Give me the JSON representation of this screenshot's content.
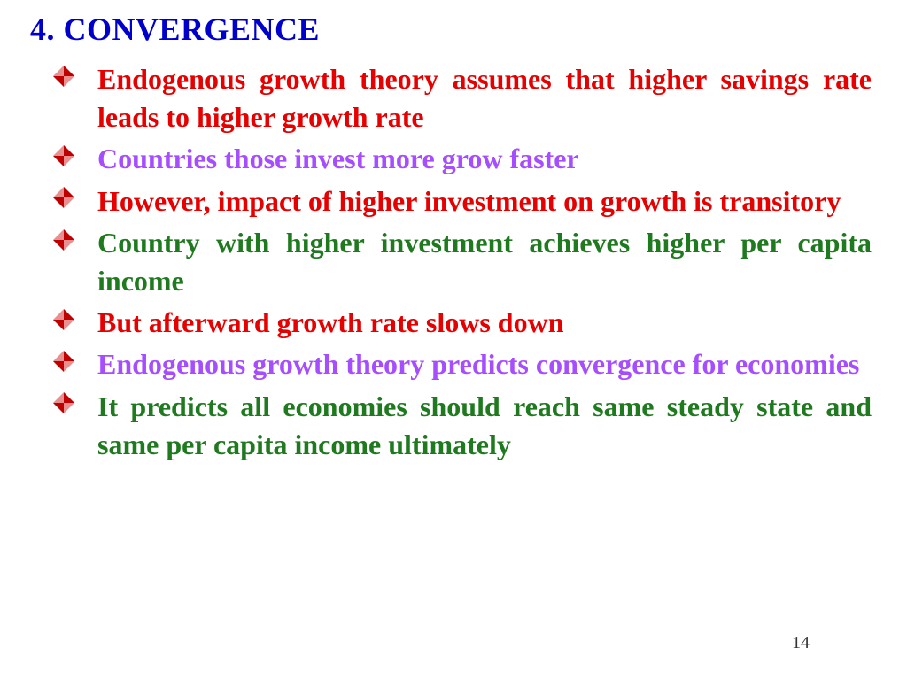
{
  "colors": {
    "title": "#0000cc",
    "red": "#e60000",
    "purple": "#a64dff",
    "green": "#1f7a1f",
    "bullet_primary": "#c00000",
    "bullet_secondary": "#e89090",
    "page_num": "#333333",
    "background": "#ffffff"
  },
  "typography": {
    "title_fontsize": 36,
    "bullet_fontsize": 32,
    "font_family": "Times New Roman"
  },
  "title": "4. CONVERGENCE",
  "bullets": [
    {
      "text": "Endogenous growth theory assumes that higher savings rate leads to higher growth rate",
      "color": "red",
      "justify": true
    },
    {
      "text": "Countries those invest more grow faster",
      "color": "purple",
      "justify": false
    },
    {
      "text": "However, impact of higher investment on growth is transitory",
      "color": "red",
      "justify": true
    },
    {
      "text": "Country with higher investment achieves higher per capita income",
      "color": "green",
      "justify": true
    },
    {
      "text": "But afterward growth rate slows down",
      "color": "red",
      "justify": false
    },
    {
      "text": "Endogenous growth theory predicts convergence for economies",
      "color": "purple",
      "justify": true
    },
    {
      "text": "It predicts all economies should reach same steady state and same per capita income ultimately",
      "color": "green",
      "justify": true
    }
  ],
  "page_number": "14"
}
